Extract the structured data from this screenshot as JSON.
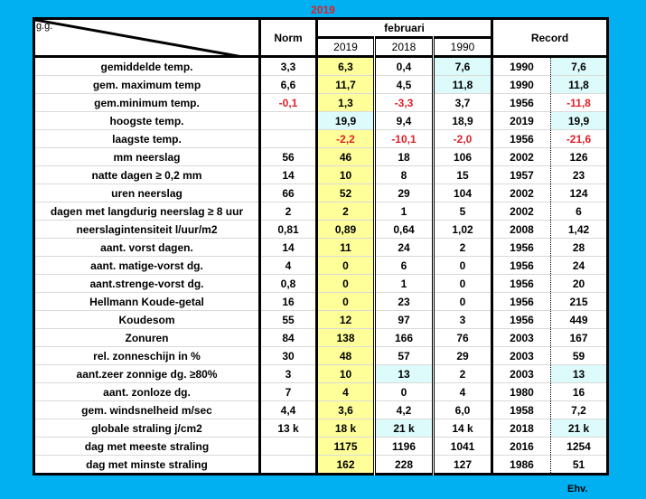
{
  "title": "2019",
  "footer": "Ehv.",
  "header": {
    "corner": "g.g.",
    "norm": "Norm",
    "month": "februari",
    "record": "Record",
    "years": [
      "2019",
      "2018",
      "1990"
    ]
  },
  "colors": {
    "background": "#00b0f0",
    "highlight_current": "#ffff99",
    "highlight_record": "#ddfbfb",
    "negative": "#e0202a"
  },
  "rows": [
    {
      "label": "gemiddelde temp.",
      "cells": [
        "3,3",
        "6,3",
        "0,4",
        "7,6",
        "1990",
        "7,6"
      ],
      "cyan": [
        3,
        5
      ],
      "red": []
    },
    {
      "label": "gem. maximum temp",
      "cells": [
        "6,6",
        "11,7",
        "4,5",
        "11,8",
        "1990",
        "11,8"
      ],
      "cyan": [
        3,
        5
      ],
      "red": []
    },
    {
      "label": "gem.minimum temp.",
      "cells": [
        "-0,1",
        "1,3",
        "-3,3",
        "3,7",
        "1956",
        "-11,8"
      ],
      "cyan": [],
      "red": [
        0,
        2,
        5
      ]
    },
    {
      "label": "hoogste temp.",
      "cells": [
        "",
        "19,9",
        "9,4",
        "18,9",
        "2019",
        "19,9"
      ],
      "cyan": [
        1,
        5
      ],
      "red": []
    },
    {
      "label": "laagste temp.",
      "cells": [
        "",
        "-2,2",
        "-10,1",
        "-2,0",
        "1956",
        "-21,6"
      ],
      "cyan": [],
      "red": [
        1,
        2,
        3,
        5
      ]
    },
    {
      "label": "mm neerslag",
      "cells": [
        "56",
        "46",
        "18",
        "106",
        "2002",
        "126"
      ],
      "cyan": [],
      "red": []
    },
    {
      "label": "natte dagen ≥ 0,2 mm",
      "cells": [
        "14",
        "10",
        "8",
        "15",
        "1957",
        "23"
      ],
      "cyan": [],
      "red": []
    },
    {
      "label": "uren neerslag",
      "cells": [
        "66",
        "52",
        "29",
        "104",
        "2002",
        "124"
      ],
      "cyan": [],
      "red": []
    },
    {
      "label": "dagen met langdurig neerslag ≥ 8 uur",
      "cells": [
        "2",
        "2",
        "1",
        "5",
        "2002",
        "6"
      ],
      "cyan": [],
      "red": []
    },
    {
      "label": "neerslagintensiteit l/uur/m2",
      "cells": [
        "0,81",
        "0,89",
        "0,64",
        "1,02",
        "2008",
        "1,42"
      ],
      "cyan": [],
      "red": []
    },
    {
      "label": "aant. vorst dagen.",
      "cells": [
        "14",
        "11",
        "24",
        "2",
        "1956",
        "28"
      ],
      "cyan": [],
      "red": []
    },
    {
      "label": "aant. matige-vorst dg.",
      "cells": [
        "4",
        "0",
        "6",
        "0",
        "1956",
        "24"
      ],
      "cyan": [],
      "red": []
    },
    {
      "label": "aant.strenge-vorst dg.",
      "cells": [
        "0,8",
        "0",
        "1",
        "0",
        "1956",
        "20"
      ],
      "cyan": [],
      "red": []
    },
    {
      "label": "Hellmann Koude-getal",
      "cells": [
        "16",
        "0",
        "23",
        "0",
        "1956",
        "215"
      ],
      "cyan": [],
      "red": []
    },
    {
      "label": "Koudesom",
      "cells": [
        "55",
        "12",
        "97",
        "3",
        "1956",
        "449"
      ],
      "cyan": [],
      "red": []
    },
    {
      "label": "Zonuren",
      "cells": [
        "84",
        "138",
        "166",
        "76",
        "2003",
        "167"
      ],
      "cyan": [],
      "red": []
    },
    {
      "label": "rel. zonneschijn in %",
      "cells": [
        "30",
        "48",
        "57",
        "29",
        "2003",
        "59"
      ],
      "cyan": [],
      "red": []
    },
    {
      "label": "aant.zeer zonnige dg. ≥80%",
      "cells": [
        "3",
        "10",
        "13",
        "2",
        "2003",
        "13"
      ],
      "cyan": [
        2,
        5
      ],
      "red": []
    },
    {
      "label": "aant. zonloze dg.",
      "cells": [
        "7",
        "4",
        "0",
        "4",
        "1980",
        "16"
      ],
      "cyan": [],
      "red": []
    },
    {
      "label": "gem. windsnelheid m/sec",
      "cells": [
        "4,4",
        "3,6",
        "4,2",
        "6,0",
        "1958",
        "7,2"
      ],
      "cyan": [],
      "red": []
    },
    {
      "label": "globale straling j/cm2",
      "cells": [
        "13 k",
        "18 k",
        "21 k",
        "14 k",
        "2018",
        "21 k"
      ],
      "cyan": [
        2,
        5
      ],
      "red": []
    },
    {
      "label": "dag met meeste straling",
      "cells": [
        "",
        "1175",
        "1196",
        "1041",
        "2016",
        "1254"
      ],
      "cyan": [],
      "red": []
    },
    {
      "label": "dag met minste straling",
      "cells": [
        "",
        "162",
        "228",
        "127",
        "1986",
        "51"
      ],
      "cyan": [],
      "red": []
    }
  ]
}
